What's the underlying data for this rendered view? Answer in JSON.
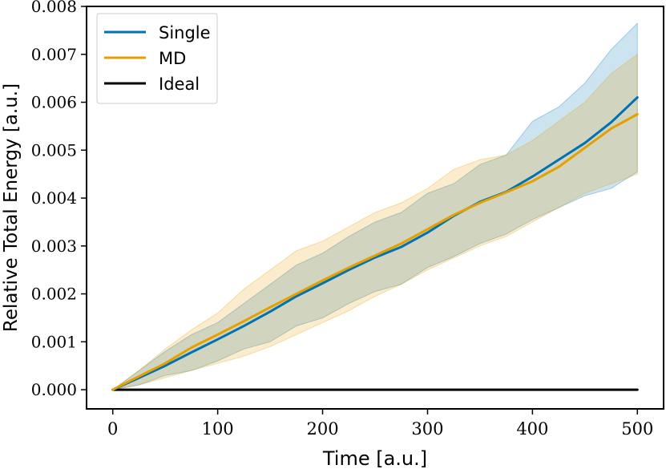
{
  "chart_data": {
    "type": "line",
    "xlabel": "Time [a.u.]",
    "ylabel": "Relative Total Energy [a.u.]",
    "xlim": [
      -25,
      525
    ],
    "ylim": [
      -0.0004,
      0.008
    ],
    "xticks": [
      0,
      100,
      200,
      300,
      400,
      500
    ],
    "yticks": [
      0.0,
      0.001,
      0.002,
      0.003,
      0.004,
      0.005,
      0.006,
      0.007,
      0.008
    ],
    "xtick_labels": [
      "0",
      "100",
      "200",
      "300",
      "400",
      "500"
    ],
    "ytick_labels": [
      "0.000",
      "0.001",
      "0.002",
      "0.003",
      "0.004",
      "0.005",
      "0.006",
      "0.007",
      "0.008"
    ],
    "grid": false,
    "legend_position": "top-left",
    "x": [
      0,
      25,
      50,
      75,
      100,
      125,
      150,
      175,
      200,
      225,
      250,
      275,
      300,
      325,
      350,
      375,
      400,
      425,
      450,
      475,
      500
    ],
    "series": [
      {
        "name": "Single",
        "color": "#0072B2",
        "values": [
          0.0,
          0.00025,
          0.0005,
          0.00078,
          0.00105,
          0.00133,
          0.00163,
          0.00195,
          0.00222,
          0.0025,
          0.00276,
          0.00298,
          0.00328,
          0.00363,
          0.00392,
          0.00413,
          0.00445,
          0.0048,
          0.00515,
          0.00558,
          0.0061
        ],
        "band_lower": [
          0.0,
          0.0001,
          0.0003,
          0.0004,
          0.0006,
          0.00085,
          0.001,
          0.00133,
          0.0015,
          0.0018,
          0.00205,
          0.0022,
          0.00255,
          0.00278,
          0.00305,
          0.00325,
          0.00355,
          0.0038,
          0.00405,
          0.0042,
          0.00455
        ],
        "band_upper": [
          0.0,
          0.0004,
          0.0008,
          0.00115,
          0.0014,
          0.0018,
          0.0022,
          0.0026,
          0.00285,
          0.0032,
          0.0035,
          0.0037,
          0.0041,
          0.0043,
          0.0047,
          0.0049,
          0.0056,
          0.0059,
          0.0064,
          0.0071,
          0.00765
        ]
      },
      {
        "name": "MD",
        "color": "#E69F00",
        "values": [
          0.0,
          0.00028,
          0.00055,
          0.00088,
          0.00115,
          0.00143,
          0.00172,
          0.002,
          0.00228,
          0.00255,
          0.0028,
          0.00305,
          0.00335,
          0.00365,
          0.0039,
          0.00412,
          0.00435,
          0.00465,
          0.00505,
          0.00545,
          0.00575
        ],
        "band_lower": [
          0.0,
          0.0001,
          0.00025,
          0.0004,
          0.00055,
          0.0007,
          0.0009,
          0.00115,
          0.0014,
          0.00165,
          0.00195,
          0.0022,
          0.0025,
          0.00275,
          0.003,
          0.0032,
          0.0035,
          0.0038,
          0.0041,
          0.0043,
          0.0045
        ],
        "band_upper": [
          0.0,
          0.0004,
          0.00085,
          0.00125,
          0.0016,
          0.0021,
          0.0025,
          0.0029,
          0.0031,
          0.0034,
          0.0037,
          0.0039,
          0.0042,
          0.0046,
          0.0048,
          0.0049,
          0.0052,
          0.0056,
          0.006,
          0.0066,
          0.007
        ]
      },
      {
        "name": "Ideal",
        "color": "#000000",
        "values": [
          0,
          0,
          0,
          0,
          0,
          0,
          0,
          0,
          0,
          0,
          0,
          0,
          0,
          0,
          0,
          0,
          0,
          0,
          0,
          0,
          0
        ]
      }
    ]
  }
}
